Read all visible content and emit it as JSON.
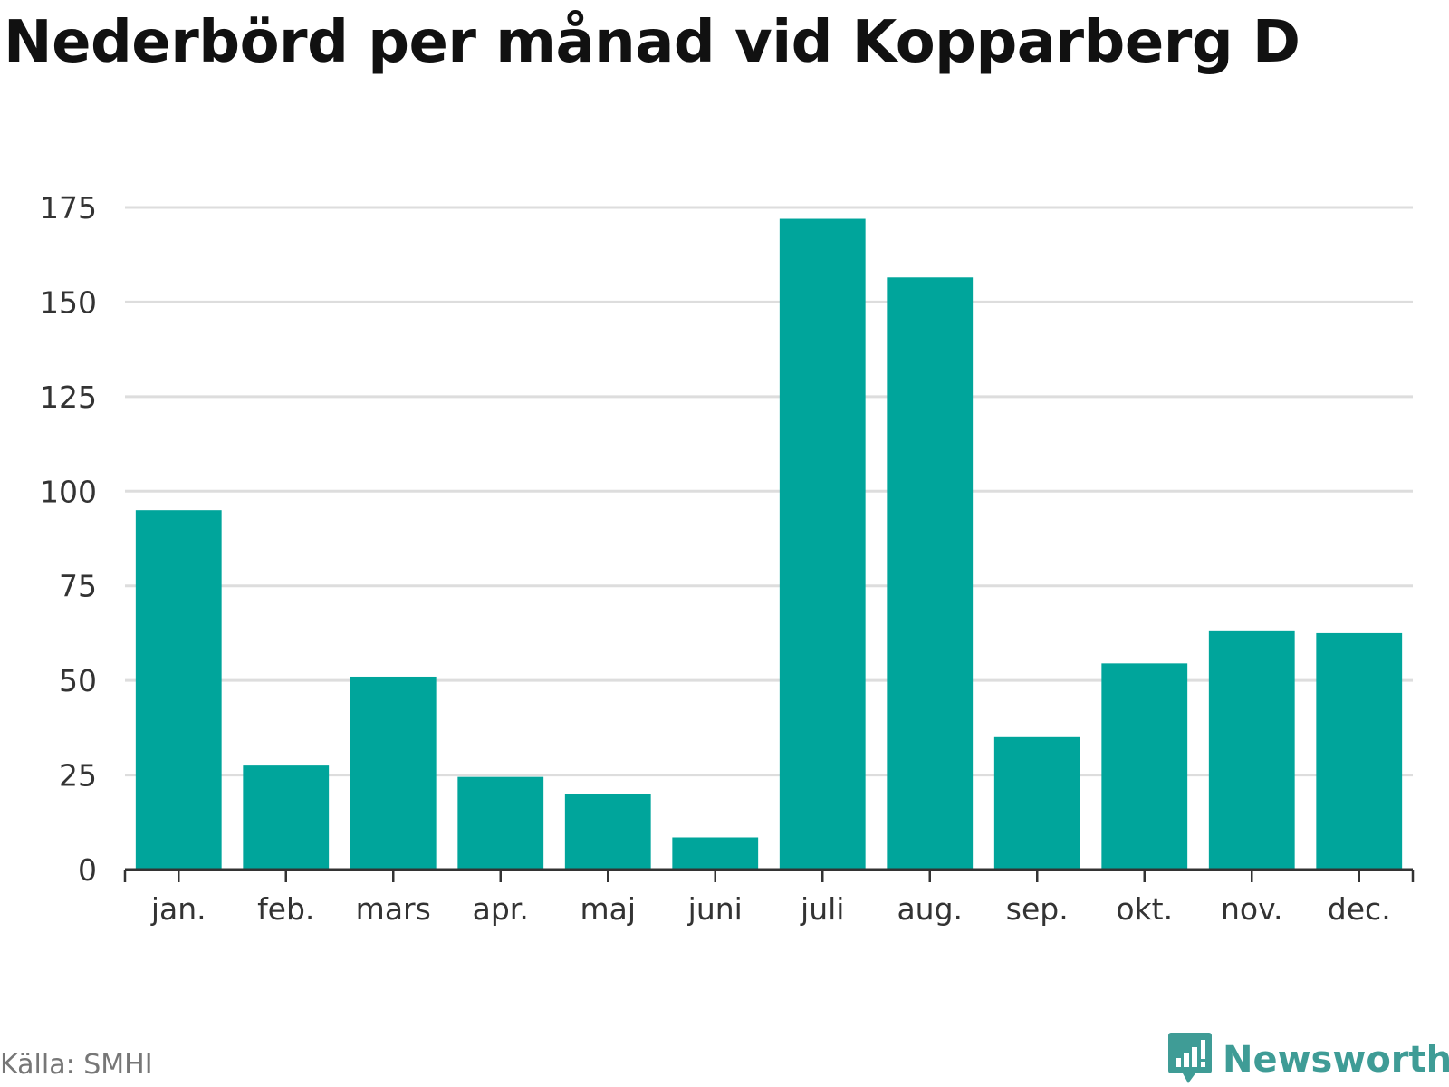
{
  "title": "Nederbörd per månad vid Kopparberg D",
  "source": "Källa: SMHI",
  "brand": {
    "name": "Newsworthy",
    "icon": "newsworthy-logo-icon",
    "color": "#3f9c96"
  },
  "colors": {
    "bar": "#00a59b",
    "grid": "#dddddd",
    "axis": "#333333"
  },
  "chart_data": {
    "type": "bar",
    "title": "Nederbörd per månad vid Kopparberg D",
    "xlabel": "",
    "ylabel": "",
    "categories": [
      "jan.",
      "feb.",
      "mars",
      "apr.",
      "maj",
      "juni",
      "juli",
      "aug.",
      "sep.",
      "okt.",
      "nov.",
      "dec."
    ],
    "values": [
      95,
      27.5,
      51,
      24.5,
      20,
      8.5,
      172,
      156.5,
      35,
      54.5,
      63,
      62.5
    ],
    "ylim": [
      0,
      175
    ],
    "yticks": [
      0,
      25,
      50,
      75,
      100,
      125,
      150,
      175
    ],
    "grid": true,
    "legend": "none"
  }
}
